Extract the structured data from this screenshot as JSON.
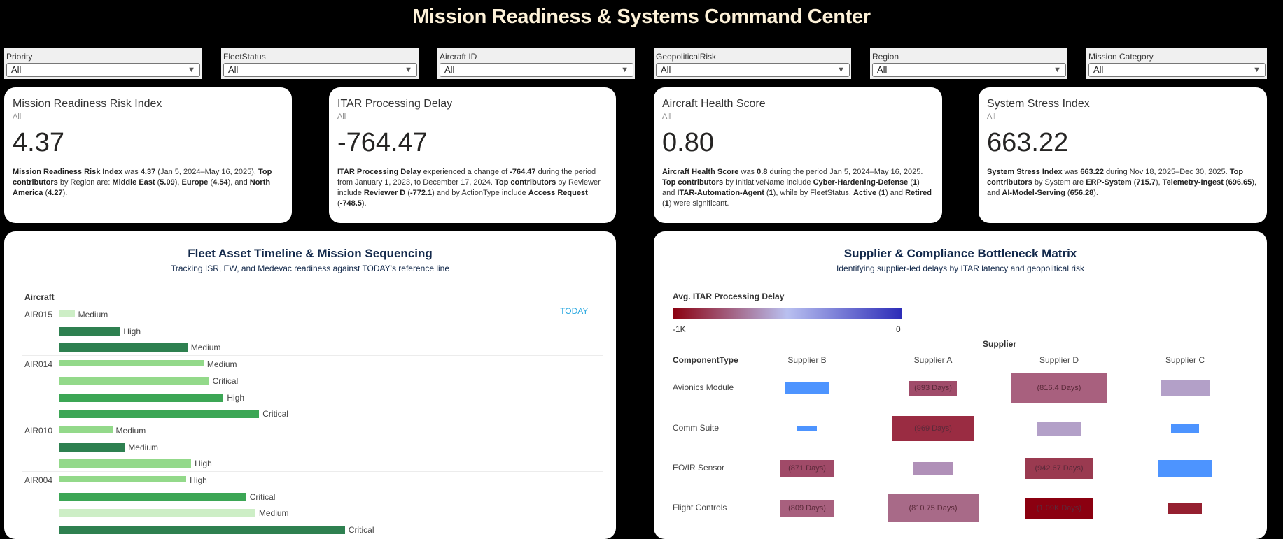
{
  "header": {
    "title": "Mission Readiness & Systems Command Center"
  },
  "filters": [
    {
      "label": "Priority",
      "value": "All"
    },
    {
      "label": "FleetStatus",
      "value": "All"
    },
    {
      "label": "Aircraft ID",
      "value": "All"
    },
    {
      "label": "GeopoliticalRisk",
      "value": "All"
    },
    {
      "label": "Region",
      "value": "All"
    },
    {
      "label": "Mission Category",
      "value": "All"
    }
  ],
  "kpis": [
    {
      "title": "Mission Readiness Risk Index",
      "subtitle": "All",
      "value": "4.37",
      "description": [
        {
          "t": "Mission Readiness Risk Index",
          "b": true
        },
        {
          "t": " was "
        },
        {
          "t": "4.37",
          "b": true
        },
        {
          "t": " (Jan 5, 2024–May 16, 2025). "
        },
        {
          "t": "Top contributors",
          "b": true
        },
        {
          "t": " by Region are: "
        },
        {
          "t": "Middle East",
          "b": true
        },
        {
          "t": " ("
        },
        {
          "t": "5.09",
          "b": true
        },
        {
          "t": "), "
        },
        {
          "t": "Europe",
          "b": true
        },
        {
          "t": " ("
        },
        {
          "t": "4.54",
          "b": true
        },
        {
          "t": "), and "
        },
        {
          "t": "North America",
          "b": true
        },
        {
          "t": " ("
        },
        {
          "t": "4.27",
          "b": true
        },
        {
          "t": ")."
        }
      ]
    },
    {
      "title": "ITAR Processing Delay",
      "subtitle": "All",
      "value": "-764.47",
      "description": [
        {
          "t": "ITAR Processing Delay",
          "b": true
        },
        {
          "t": " experienced a change of "
        },
        {
          "t": "-764.47",
          "b": true
        },
        {
          "t": " during the period from January 1, 2023, to December 17, 2024. "
        },
        {
          "t": "Top contributors",
          "b": true
        },
        {
          "t": " by Reviewer include "
        },
        {
          "t": "Reviewer D",
          "b": true
        },
        {
          "t": " ("
        },
        {
          "t": "-772.1",
          "b": true
        },
        {
          "t": ") and by ActionType include "
        },
        {
          "t": "Access Request",
          "b": true
        },
        {
          "t": " ("
        },
        {
          "t": "-748.5",
          "b": true
        },
        {
          "t": ")."
        }
      ]
    },
    {
      "title": "Aircraft Health Score",
      "subtitle": "All",
      "value": "0.80",
      "description": [
        {
          "t": "Aircraft Health Score",
          "b": true
        },
        {
          "t": " was "
        },
        {
          "t": "0.8",
          "b": true
        },
        {
          "t": " during the period Jan 5, 2024–May 16, 2025. "
        },
        {
          "t": "Top contributors",
          "b": true
        },
        {
          "t": " by InitiativeName include "
        },
        {
          "t": "Cyber-Hardening-Defense",
          "b": true
        },
        {
          "t": " ("
        },
        {
          "t": "1",
          "b": true
        },
        {
          "t": ") and "
        },
        {
          "t": "ITAR-Automation-Agent",
          "b": true
        },
        {
          "t": " ("
        },
        {
          "t": "1",
          "b": true
        },
        {
          "t": "), while by FleetStatus, "
        },
        {
          "t": "Active",
          "b": true
        },
        {
          "t": " ("
        },
        {
          "t": "1",
          "b": true
        },
        {
          "t": ") and "
        },
        {
          "t": "Retired",
          "b": true
        },
        {
          "t": " ("
        },
        {
          "t": "1",
          "b": true
        },
        {
          "t": ") were significant."
        }
      ]
    },
    {
      "title": "System Stress Index",
      "subtitle": "All",
      "value": "663.22",
      "description": [
        {
          "t": "System Stress Index",
          "b": true
        },
        {
          "t": " was "
        },
        {
          "t": "663.22",
          "b": true
        },
        {
          "t": " during Nov 18, 2025–Dec 30, 2025. "
        },
        {
          "t": "Top contributors",
          "b": true
        },
        {
          "t": " by System are "
        },
        {
          "t": "ERP-System",
          "b": true
        },
        {
          "t": " ("
        },
        {
          "t": "715.7",
          "b": true
        },
        {
          "t": "), "
        },
        {
          "t": "Telemetry-Ingest",
          "b": true
        },
        {
          "t": " ("
        },
        {
          "t": "696.65",
          "b": true
        },
        {
          "t": "), and "
        },
        {
          "t": "AI-Model-Serving",
          "b": true
        },
        {
          "t": " ("
        },
        {
          "t": "656.28",
          "b": true
        },
        {
          "t": ")."
        }
      ]
    }
  ],
  "timeline": {
    "title": "Fleet Asset Timeline & Mission Sequencing",
    "subtitle": "Tracking ISR, EW, and Medevac readiness against TODAY's reference line",
    "axis_label": "Aircraft",
    "today_label": "TODAY",
    "today_position": 0.925,
    "priority_colors": {
      "very-light": "#cdeec6",
      "light": "#93d98a",
      "mid": "#3ca655",
      "dark": "#2e8050"
    },
    "groups": [
      {
        "aircraft": "AIR015",
        "bars": [
          {
            "label": "Medium",
            "end": 0.028,
            "shade": "very-light"
          },
          {
            "label": "High",
            "end": 0.112,
            "shade": "dark"
          },
          {
            "label": "Medium",
            "end": 0.237,
            "shade": "dark"
          }
        ]
      },
      {
        "aircraft": "AIR014",
        "bars": [
          {
            "label": "Medium",
            "end": 0.267,
            "shade": "light"
          },
          {
            "label": "Critical",
            "end": 0.277,
            "shade": "light"
          },
          {
            "label": "High",
            "end": 0.304,
            "shade": "mid"
          },
          {
            "label": "Critical",
            "end": 0.37,
            "shade": "mid"
          }
        ]
      },
      {
        "aircraft": "AIR010",
        "bars": [
          {
            "label": "Medium",
            "end": 0.098,
            "shade": "light"
          },
          {
            "label": "Medium",
            "end": 0.121,
            "shade": "dark"
          },
          {
            "label": "High",
            "end": 0.244,
            "shade": "light"
          }
        ]
      },
      {
        "aircraft": "AIR004",
        "bars": [
          {
            "label": "High",
            "end": 0.235,
            "shade": "light"
          },
          {
            "label": "Critical",
            "end": 0.346,
            "shade": "mid"
          },
          {
            "label": "Medium",
            "end": 0.363,
            "shade": "very-light"
          },
          {
            "label": "Critical",
            "end": 0.529,
            "shade": "dark"
          }
        ]
      }
    ]
  },
  "matrix": {
    "title": "Supplier & Compliance Bottleneck Matrix",
    "subtitle": "Identifying supplier-led delays by ITAR latency and geopolitical risk",
    "legend_title": "Avg. ITAR Processing Delay",
    "legend_min": "-1K",
    "legend_max": "0",
    "legend_colors": [
      "#8b0010",
      "#b9c0f0",
      "#2d2db8"
    ],
    "column_group": "Supplier",
    "row_header": "ComponentType",
    "columns": [
      "Supplier B",
      "Supplier A",
      "Supplier D",
      "Supplier C"
    ],
    "rows": [
      {
        "name": "Avionics Module",
        "cells": [
          {
            "label": "",
            "color": "#4d94ff",
            "size": 0.45
          },
          {
            "label": "(893 Days)",
            "color": "#a04c6a",
            "size": 0.5
          },
          {
            "label": "(816.4 Days)",
            "color": "#a8607e",
            "size": 1.0
          },
          {
            "label": "",
            "color": "#b3a0c8",
            "size": 0.52
          }
        ]
      },
      {
        "name": "Comm Suite",
        "cells": [
          {
            "label": "",
            "color": "#4d94ff",
            "size": 0.2
          },
          {
            "label": "(969 Days)",
            "color": "#9a2c42",
            "size": 0.85
          },
          {
            "label": "",
            "color": "#b3a0c8",
            "size": 0.47
          },
          {
            "label": "",
            "color": "#4d94ff",
            "size": 0.3
          }
        ]
      },
      {
        "name": "EO/IR Sensor",
        "cells": [
          {
            "label": "(871 Days)",
            "color": "#a04a68",
            "size": 0.58
          },
          {
            "label": "",
            "color": "#b090b8",
            "size": 0.42
          },
          {
            "label": "(942.67 Days)",
            "color": "#9a3a50",
            "size": 0.7
          },
          {
            "label": "",
            "color": "#4d94ff",
            "size": 0.58
          }
        ]
      },
      {
        "name": "Flight Controls",
        "cells": [
          {
            "label": "(809 Days)",
            "color": "#a8607e",
            "size": 0.58
          },
          {
            "label": "(810.75 Days)",
            "color": "#a86a88",
            "size": 0.95
          },
          {
            "label": "(1.09K Days)",
            "color": "#8b0010",
            "size": 0.7
          },
          {
            "label": "",
            "color": "#952030",
            "size": 0.36
          }
        ]
      }
    ]
  }
}
